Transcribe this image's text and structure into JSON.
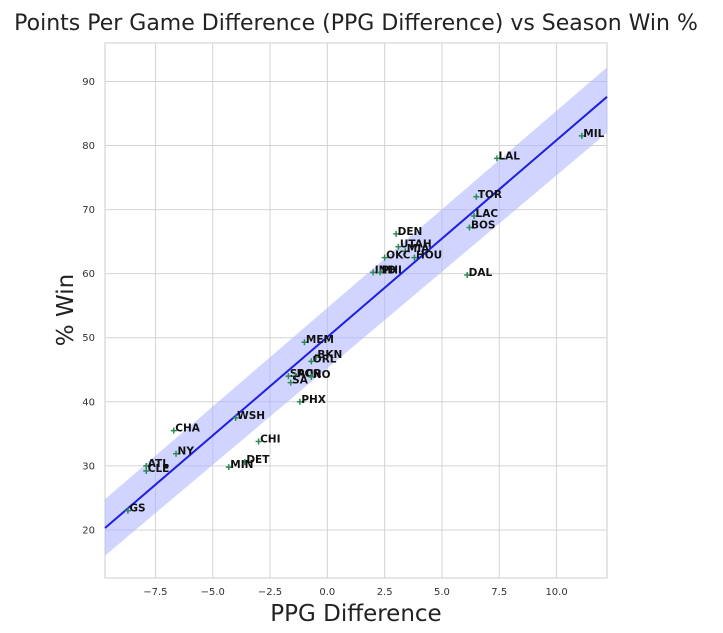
{
  "chart_data": {
    "type": "scatter",
    "title": "Points Per Game Difference (PPG Difference) vs Season Win %",
    "xlabel": "PPG Difference",
    "ylabel": "% Win",
    "xlim": [
      -9.7,
      12.2
    ],
    "ylim": [
      12.5,
      96
    ],
    "xticks": [
      -7.5,
      -5.0,
      -2.5,
      0.0,
      2.5,
      5.0,
      7.5,
      10.0
    ],
    "xtick_labels": [
      "−7.5",
      "−5.0",
      "−2.5",
      "0.0",
      "2.5",
      "5.0",
      "7.5",
      "10.0"
    ],
    "yticks": [
      20,
      30,
      40,
      50,
      60,
      70,
      80,
      90
    ],
    "ytick_labels": [
      "20",
      "30",
      "40",
      "50",
      "60",
      "70",
      "80",
      "90"
    ],
    "grid": true,
    "regression": {
      "x_range": [
        -9.7,
        12.2
      ],
      "line_y": [
        20.3,
        87.6
      ],
      "ci_lower_y": [
        16.0,
        82.0
      ],
      "ci_upper_y": [
        24.8,
        92.2
      ]
    },
    "colors": {
      "marker": "#2e8b57",
      "line": "#1f1fe0",
      "ci_band": "#aab0ff"
    },
    "points": [
      {
        "team": "MIL",
        "x": 11.1,
        "y": 81.5
      },
      {
        "team": "LAL",
        "x": 7.4,
        "y": 78.0
      },
      {
        "team": "TOR",
        "x": 6.5,
        "y": 72.0
      },
      {
        "team": "LAC",
        "x": 6.4,
        "y": 69.0
      },
      {
        "team": "BOS",
        "x": 6.2,
        "y": 67.2
      },
      {
        "team": "DEN",
        "x": 3.0,
        "y": 66.2
      },
      {
        "team": "UTAH",
        "x": 3.1,
        "y": 64.2
      },
      {
        "team": "MIA",
        "x": 3.4,
        "y": 63.5
      },
      {
        "team": "OKC",
        "x": 2.5,
        "y": 62.5
      },
      {
        "team": "HOU",
        "x": 3.8,
        "y": 62.5
      },
      {
        "team": "DAL",
        "x": 6.1,
        "y": 59.8
      },
      {
        "team": "IND",
        "x": 2.0,
        "y": 60.2
      },
      {
        "team": "PHI",
        "x": 2.3,
        "y": 60.2
      },
      {
        "team": "MEM",
        "x": -1.0,
        "y": 49.3
      },
      {
        "team": "BKN",
        "x": -0.5,
        "y": 47.0
      },
      {
        "team": "ORL",
        "x": -0.7,
        "y": 46.3
      },
      {
        "team": "SAC",
        "x": -1.7,
        "y": 44.0
      },
      {
        "team": "POR",
        "x": -1.4,
        "y": 44.0
      },
      {
        "team": "NO",
        "x": -0.7,
        "y": 43.9
      },
      {
        "team": "SA",
        "x": -1.6,
        "y": 43.0
      },
      {
        "team": "PHX",
        "x": -1.2,
        "y": 40.0
      },
      {
        "team": "WSH",
        "x": -4.0,
        "y": 37.5
      },
      {
        "team": "CHA",
        "x": -6.7,
        "y": 35.5
      },
      {
        "team": "CHI",
        "x": -3.0,
        "y": 33.8
      },
      {
        "team": "NY",
        "x": -6.6,
        "y": 31.9
      },
      {
        "team": "DET",
        "x": -3.6,
        "y": 30.6
      },
      {
        "team": "MIN",
        "x": -4.3,
        "y": 29.8
      },
      {
        "team": "ATL",
        "x": -7.9,
        "y": 30.0
      },
      {
        "team": "CLE",
        "x": -7.9,
        "y": 29.2
      },
      {
        "team": "GS",
        "x": -8.7,
        "y": 23.0
      }
    ]
  }
}
